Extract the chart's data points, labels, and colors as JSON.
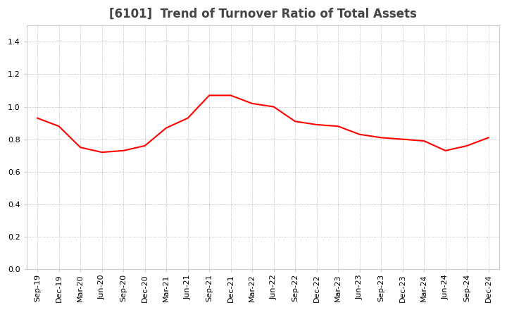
{
  "title": "[6101]  Trend of Turnover Ratio of Total Assets",
  "x_labels": [
    "Sep-19",
    "Dec-19",
    "Mar-20",
    "Jun-20",
    "Sep-20",
    "Dec-20",
    "Mar-21",
    "Jun-21",
    "Sep-21",
    "Dec-21",
    "Mar-22",
    "Jun-22",
    "Sep-22",
    "Dec-22",
    "Mar-23",
    "Jun-23",
    "Sep-23",
    "Dec-23",
    "Mar-24",
    "Jun-24",
    "Sep-24",
    "Dec-24"
  ],
  "y_values": [
    0.93,
    0.88,
    0.75,
    0.72,
    0.73,
    0.76,
    0.87,
    0.93,
    1.07,
    1.07,
    1.02,
    1.0,
    0.91,
    0.89,
    0.88,
    0.83,
    0.81,
    0.8,
    0.79,
    0.73,
    0.76,
    0.81
  ],
  "ylim": [
    0.0,
    1.5
  ],
  "yticks": [
    0.0,
    0.2,
    0.4,
    0.6,
    0.8,
    1.0,
    1.2,
    1.4
  ],
  "line_color": "#FF0000",
  "line_width": 1.5,
  "grid_color": "#aaaaaa",
  "bg_color": "#ffffff",
  "title_fontsize": 12,
  "tick_fontsize": 8,
  "title_color": "#444444"
}
